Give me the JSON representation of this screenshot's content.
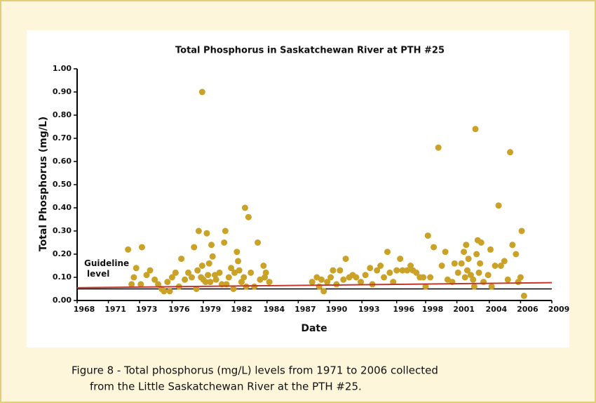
{
  "chart_data": {
    "type": "scatter",
    "title": "Total Phosphorus in Saskatchewan River at PTH #25",
    "x_label": "Date",
    "y_label": "Total Phosphorus (mg/L)",
    "color": "#c9a227",
    "xlim": [
      1968,
      2009
    ],
    "xticks": [
      {
        "value": 1968,
        "label": "1968"
      },
      {
        "value": 1970.7,
        "label": "1971"
      },
      {
        "value": 1973.4,
        "label": "1973"
      },
      {
        "value": 1976.2,
        "label": "1976"
      },
      {
        "value": 1978.9,
        "label": "1979"
      },
      {
        "value": 1981.6,
        "label": "1982"
      },
      {
        "value": 1984.4,
        "label": "1984"
      },
      {
        "value": 1987.1,
        "label": "1987"
      },
      {
        "value": 1989.8,
        "label": "1990"
      },
      {
        "value": 1992.6,
        "label": "1993"
      },
      {
        "value": 1995.6,
        "label": "1996"
      },
      {
        "value": 1998.1,
        "label": "1998"
      },
      {
        "value": 2000.8,
        "label": "2001"
      },
      {
        "value": 2003.6,
        "label": "2004"
      },
      {
        "value": 2006.3,
        "label": "2006"
      },
      {
        "value": 2009,
        "label": "2009"
      }
    ],
    "ylim": [
      0,
      1
    ],
    "yticks": [
      {
        "value": 0,
        "label": "0.00"
      },
      {
        "value": 0.1,
        "label": "0.10"
      },
      {
        "value": 0.2,
        "label": "0.20"
      },
      {
        "value": 0.3,
        "label": "0.30"
      },
      {
        "value": 0.4,
        "label": "0.40"
      },
      {
        "value": 0.5,
        "label": "0.50"
      },
      {
        "value": 0.6,
        "label": "0.60"
      },
      {
        "value": 0.7,
        "label": "0.70"
      },
      {
        "value": 0.8,
        "label": "0.80"
      },
      {
        "value": 0.9,
        "label": "0.90"
      },
      {
        "value": 1,
        "label": "1.00"
      }
    ],
    "x": [
      1972.4,
      1972.7,
      1972.9,
      1973.1,
      1973.5,
      1973.6,
      1974.0,
      1974.3,
      1974.7,
      1975.0,
      1975.3,
      1975.5,
      1975.8,
      1976.0,
      1976.2,
      1976.5,
      1976.8,
      1977.0,
      1977.3,
      1977.6,
      1977.9,
      1978.1,
      1978.3,
      1978.4,
      1978.5,
      1978.7,
      1978.8,
      1978.9,
      1978.8,
      1979.1,
      1979.2,
      1979.3,
      1979.4,
      1979.5,
      1979.6,
      1979.7,
      1979.9,
      1980.0,
      1980.3,
      1980.5,
      1980.7,
      1980.8,
      1980.9,
      1981.1,
      1981.3,
      1981.5,
      1981.6,
      1981.8,
      1981.9,
      1982.0,
      1982.2,
      1982.4,
      1982.5,
      1982.6,
      1982.8,
      1983.0,
      1983.3,
      1983.6,
      1983.8,
      1984.1,
      1984.2,
      1984.3,
      1984.6,
      1988.3,
      1988.7,
      1988.9,
      1989.1,
      1989.3,
      1989.6,
      1989.9,
      1990.1,
      1990.4,
      1990.7,
      1991.0,
      1991.2,
      1991.5,
      1991.8,
      1992.1,
      1992.5,
      1992.9,
      1993.3,
      1993.5,
      1993.9,
      1994.2,
      1994.5,
      1994.8,
      1995.0,
      1995.3,
      1995.6,
      1995.9,
      1996.1,
      1996.5,
      1996.8,
      1997.0,
      1997.3,
      1997.6,
      1997.9,
      1998.1,
      1998.3,
      1998.5,
      1998.8,
      1999.2,
      1999.5,
      1999.8,
      2000.0,
      2000.4,
      2000.6,
      2000.9,
      2001.2,
      2001.4,
      2001.5,
      2001.6,
      2001.7,
      2001.8,
      2002.0,
      2002.2,
      2002.3,
      2002.4,
      2002.5,
      2002.6,
      2002.7,
      2002.8,
      2002.9,
      2003.1,
      2003.5,
      2003.7,
      2003.8,
      2004.1,
      2004.4,
      2004.6,
      2004.9,
      2005.2,
      2005.4,
      2005.6,
      2005.9,
      2006.1,
      2006.3,
      2006.4,
      2006.6
    ],
    "values": [
      0.22,
      0.07,
      0.1,
      0.14,
      0.07,
      0.23,
      0.11,
      0.13,
      0.09,
      0.07,
      0.05,
      0.04,
      0.08,
      0.04,
      0.1,
      0.12,
      0.06,
      0.18,
      0.09,
      0.12,
      0.1,
      0.23,
      0.05,
      0.13,
      0.3,
      0.1,
      0.15,
      0.09,
      0.9,
      0.08,
      0.29,
      0.11,
      0.16,
      0.08,
      0.24,
      0.19,
      0.11,
      0.09,
      0.12,
      0.07,
      0.25,
      0.3,
      0.07,
      0.1,
      0.14,
      0.05,
      0.12,
      0.21,
      0.17,
      0.13,
      0.08,
      0.1,
      0.4,
      0.06,
      0.36,
      0.12,
      0.06,
      0.25,
      0.09,
      0.15,
      0.1,
      0.12,
      0.08,
      0.08,
      0.1,
      0.06,
      0.09,
      0.04,
      0.08,
      0.1,
      0.13,
      0.07,
      0.13,
      0.09,
      0.18,
      0.1,
      0.11,
      0.1,
      0.08,
      0.11,
      0.14,
      0.07,
      0.13,
      0.15,
      0.1,
      0.21,
      0.12,
      0.08,
      0.13,
      0.18,
      0.13,
      0.13,
      0.15,
      0.13,
      0.12,
      0.1,
      0.1,
      0.06,
      0.28,
      0.1,
      0.23,
      0.66,
      0.15,
      0.21,
      0.09,
      0.08,
      0.16,
      0.12,
      0.16,
      0.21,
      0.1,
      0.24,
      0.13,
      0.18,
      0.11,
      0.09,
      0.06,
      0.74,
      0.2,
      0.26,
      0.12,
      0.16,
      0.25,
      0.08,
      0.11,
      0.22,
      0.06,
      0.15,
      0.41,
      0.15,
      0.17,
      0.09,
      0.64,
      0.24,
      0.2,
      0.08,
      0.1,
      0.3,
      0.02
    ],
    "trend_line": {
      "x": [
        1968,
        2009
      ],
      "values": [
        0.055,
        0.077
      ],
      "color": "#c0392b"
    },
    "guideline": {
      "value": 0.05,
      "label_lines": [
        "Guideline",
        "level"
      ]
    },
    "caption_lines": [
      "Figure 8  -  Total phosphorus (mg/L) levels from 1971 to 2006 collected",
      "from the Little Saskatchewan River at the PTH #25."
    ]
  }
}
